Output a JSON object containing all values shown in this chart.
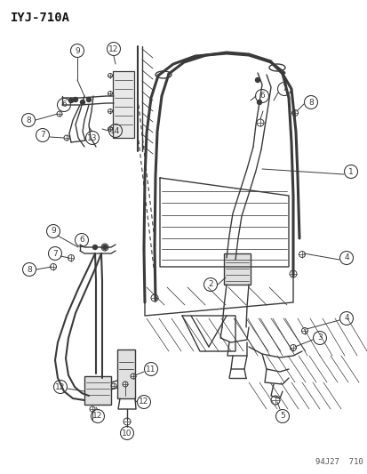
{
  "title": "IYJ-710A",
  "footer": "94J27  710",
  "bg_color": "#ffffff",
  "title_fontsize": 10,
  "footer_fontsize": 6.5,
  "fig_width": 4.14,
  "fig_height": 5.33,
  "dpi": 100,
  "line_color": "#3a3a3a",
  "label_fontsize": 6.5
}
